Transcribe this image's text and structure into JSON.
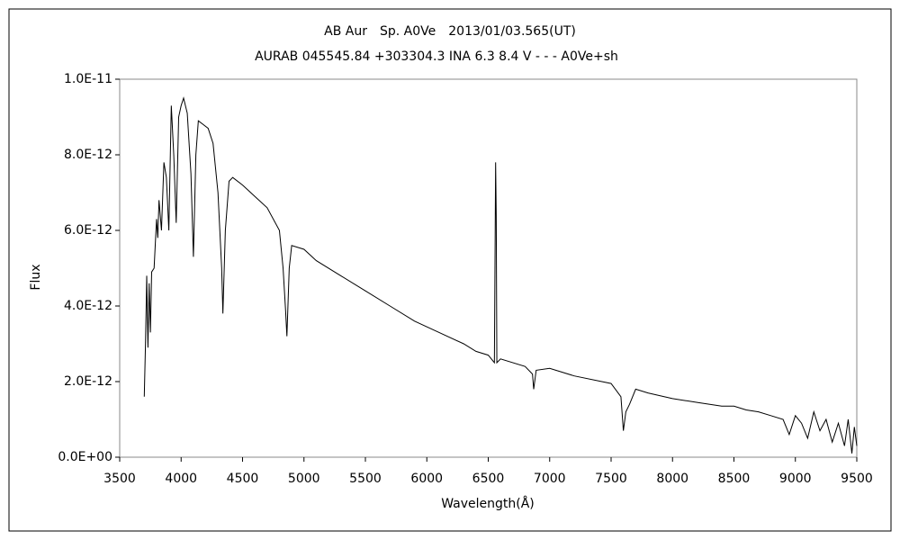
{
  "chart_data": {
    "type": "line",
    "title": "AB Aur　Sp. A0Ve　2013/01/03.565(UT)",
    "subtitle": "AURAB 045545.84 +303304.3 INA 6.3 8.4 V - - - A0Ve+sh",
    "x_label": "Wavelength(Å)",
    "y_label": "Flux",
    "xlim": [
      3500,
      9500
    ],
    "xticks": [
      3500,
      4000,
      4500,
      5000,
      5500,
      6000,
      6500,
      7000,
      7500,
      8000,
      8500,
      9000,
      9500
    ],
    "ylim": [
      0,
      1e-11
    ],
    "yticks": [
      {
        "value": 0,
        "label": "0.0E+00"
      },
      {
        "value": 2e-12,
        "label": "2.0E-12"
      },
      {
        "value": 4e-12,
        "label": "4.0E-12"
      },
      {
        "value": 6e-12,
        "label": "6.0E-12"
      },
      {
        "value": 8e-12,
        "label": "8.0E-12"
      },
      {
        "value": 1e-11,
        "label": "1.0E-11"
      }
    ],
    "grid": false,
    "series": [
      {
        "color": "#000000",
        "x": [
          3700,
          3710,
          3720,
          3730,
          3740,
          3750,
          3760,
          3780,
          3800,
          3810,
          3820,
          3840,
          3860,
          3880,
          3900,
          3920,
          3940,
          3960,
          3980,
          4000,
          4020,
          4050,
          4080,
          4100,
          4120,
          4140,
          4180,
          4220,
          4260,
          4300,
          4330,
          4340,
          4360,
          4390,
          4420,
          4500,
          4600,
          4700,
          4800,
          4830,
          4850,
          4861,
          4880,
          4900,
          5000,
          5100,
          5300,
          5500,
          5700,
          5900,
          6100,
          6300,
          6400,
          6500,
          6550,
          6560,
          6565,
          6570,
          6600,
          6800,
          6860,
          6870,
          6890,
          7000,
          7200,
          7500,
          7580,
          7600,
          7620,
          7650,
          7700,
          7800,
          8000,
          8200,
          8400,
          8500,
          8600,
          8700,
          8800,
          8900,
          8950,
          9000,
          9050,
          9100,
          9150,
          9200,
          9250,
          9300,
          9350,
          9400,
          9430,
          9460,
          9480,
          9500
        ],
        "values": [
          1.6e-12,
          3e-12,
          4.8e-12,
          2.9e-12,
          4.6e-12,
          3.3e-12,
          4.9e-12,
          5e-12,
          6.3e-12,
          5.8e-12,
          6.8e-12,
          6e-12,
          7.8e-12,
          7.4e-12,
          6e-12,
          9.3e-12,
          8e-12,
          6.2e-12,
          9e-12,
          9.3e-12,
          9.5e-12,
          9.1e-12,
          7.5e-12,
          5.3e-12,
          8e-12,
          8.9e-12,
          8.8e-12,
          8.7e-12,
          8.3e-12,
          7e-12,
          5e-12,
          3.8e-12,
          6e-12,
          7.3e-12,
          7.4e-12,
          7.2e-12,
          6.9e-12,
          6.6e-12,
          6e-12,
          5e-12,
          3.9e-12,
          3.2e-12,
          5e-12,
          5.6e-12,
          5.5e-12,
          5.2e-12,
          4.8e-12,
          4.4e-12,
          4e-12,
          3.6e-12,
          3.3e-12,
          3e-12,
          2.8e-12,
          2.7e-12,
          2.5e-12,
          7.8e-12,
          6.4e-12,
          2.5e-12,
          2.6e-12,
          2.4e-12,
          2.2e-12,
          1.8e-12,
          2.3e-12,
          2.35e-12,
          2.15e-12,
          1.95e-12,
          1.6e-12,
          7e-13,
          1.2e-12,
          1.4e-12,
          1.8e-12,
          1.7e-12,
          1.55e-12,
          1.45e-12,
          1.35e-12,
          1.35e-12,
          1.25e-12,
          1.2e-12,
          1.1e-12,
          1e-12,
          6e-13,
          1.1e-12,
          9e-13,
          5e-13,
          1.2e-12,
          7e-13,
          1e-12,
          4e-13,
          9e-13,
          3e-13,
          1e-12,
          1e-13,
          8e-13,
          3e-13
        ]
      }
    ]
  }
}
